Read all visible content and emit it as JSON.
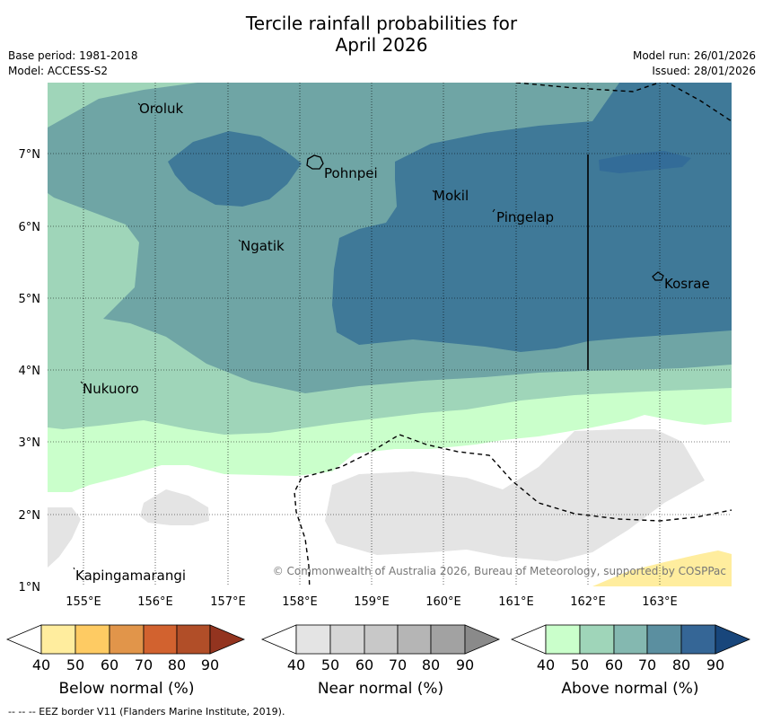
{
  "title_line1": "Tercile rainfall probabilities for",
  "title_line2": "April 2026",
  "base_period": "Base period: 1981-2018",
  "model": "Model: ACCESS-S2",
  "model_run": "Model run: 26/01/2026",
  "issued": "Issued: 28/01/2026",
  "map": {
    "lat_labels": [
      "7°N",
      "6°N",
      "5°N",
      "4°N",
      "3°N",
      "2°N",
      "1°N"
    ],
    "lon_labels": [
      "155°E",
      "156°E",
      "157°E",
      "158°E",
      "159°E",
      "160°E",
      "161°E",
      "162°E",
      "163°E"
    ],
    "places": [
      {
        "name": "Oroluk"
      },
      {
        "name": "Pohnpei"
      },
      {
        "name": "Mokil"
      },
      {
        "name": "Pingelap"
      },
      {
        "name": "Ngatik"
      },
      {
        "name": "Kosrae"
      },
      {
        "name": "Nukuoro"
      },
      {
        "name": "Kapingamarangi"
      }
    ],
    "copyright": "© Commonwealth of Australia 2026, Bureau of Meteorology, supported by COSPPac"
  },
  "colorbars": {
    "below": {
      "label": "Below normal (%)",
      "ticks": [
        "40",
        "50",
        "60",
        "70",
        "80",
        "90"
      ],
      "colors": [
        "#ffed9e",
        "#fecb63",
        "#e1954a",
        "#d2622f",
        "#b14e28",
        "#93341f"
      ]
    },
    "near": {
      "label": "Near normal (%)",
      "ticks": [
        "40",
        "50",
        "60",
        "70",
        "80",
        "90"
      ],
      "colors": [
        "#e4e4e4",
        "#d6d6d6",
        "#c8c8c8",
        "#b5b5b5",
        "#a2a2a2",
        "#8a8a8a"
      ]
    },
    "above": {
      "label": "Above normal (%)",
      "ticks": [
        "40",
        "50",
        "60",
        "70",
        "80",
        "90"
      ],
      "colors": [
        "#caffcb",
        "#9fd5b9",
        "#84b8b0",
        "#5b8fa0",
        "#356696",
        "#18467b"
      ]
    }
  },
  "footnote": "-- -- -- EEZ border V11 (Flanders Marine Institute, 2019)."
}
